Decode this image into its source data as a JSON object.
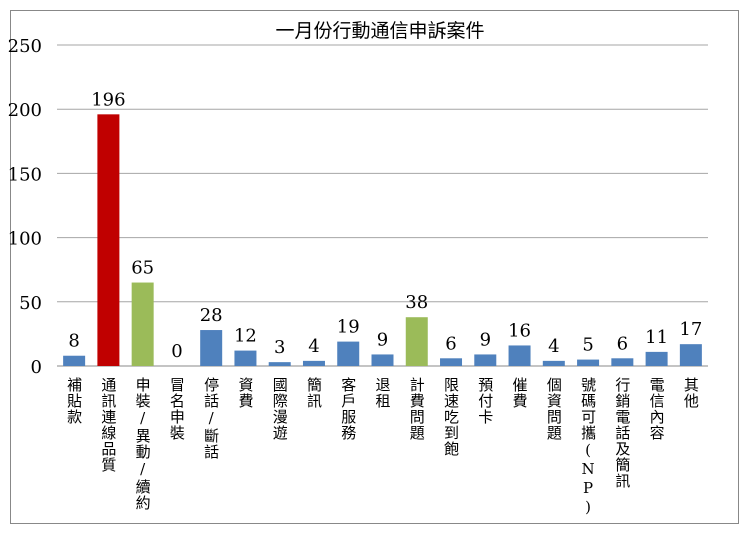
{
  "chart_data": {
    "type": "bar",
    "title": "一月份行動通信申訴案件",
    "categories": [
      "補貼款",
      "通訊連線品質",
      "申裝/異動/續約",
      "冒名申裝",
      "停話/斷話",
      "資費",
      "國際漫遊",
      "簡訊",
      "客戶服務",
      "退租",
      "計費問題",
      "限速吃到飽",
      "預付卡",
      "催費",
      "個資問題",
      "號碼可攜(NP)",
      "行銷電話及簡訊",
      "電信內容",
      "其他"
    ],
    "values": [
      8,
      196,
      65,
      0,
      28,
      12,
      3,
      4,
      19,
      9,
      38,
      6,
      9,
      16,
      4,
      5,
      6,
      11,
      17
    ],
    "colors": [
      "#4F81BD",
      "#C00000",
      "#9BBB59",
      "#4F81BD",
      "#4F81BD",
      "#4F81BD",
      "#4F81BD",
      "#4F81BD",
      "#4F81BD",
      "#4F81BD",
      "#9BBB59",
      "#4F81BD",
      "#4F81BD",
      "#4F81BD",
      "#4F81BD",
      "#4F81BD",
      "#4F81BD",
      "#4F81BD",
      "#4F81BD"
    ],
    "ylim": [
      0,
      250
    ],
    "yticks": [
      0,
      50,
      100,
      150,
      200,
      250
    ],
    "grid": true,
    "xlabel": "",
    "ylabel": ""
  }
}
